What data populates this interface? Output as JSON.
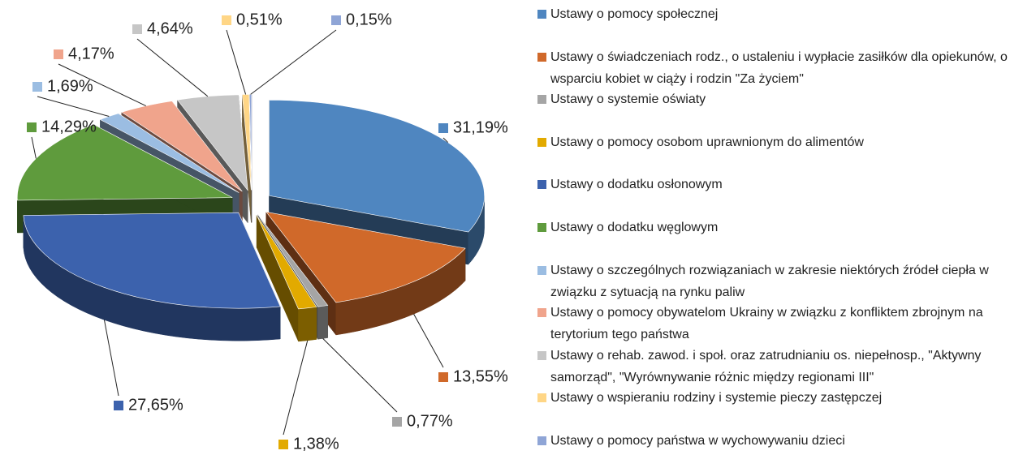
{
  "chart_data": {
    "type": "pie",
    "legend": "right",
    "categories": [
      "Ustawy o pomocy społecznej",
      "Ustawy o świadczeniach rodz., o ustaleniu i wypłacie zasiłków dla opiekunów, o wsparciu kobiet w ciąży i rodzin \"Za życiem\"",
      "Ustawy o systemie oświaty",
      "Ustawy o pomocy osobom uprawnionym do alimentów",
      "Ustawy o dodatku osłonowym",
      "Ustawy o dodatku węglowym",
      "Ustawy o szczególnych rozwiązaniach w zakresie niektórych źródeł ciepła w związku z sytuacją na rynku paliw",
      "Ustawy o pomocy obywatelom Ukrainy w związku z konfliktem zbrojnym na terytorium tego państwa",
      "Ustawy o rehab. zawod. i społ. oraz zatrudnianiu os. niepełnosp., \"Aktywny samorząd\", \"Wyrównywanie różnic między regionami III\"",
      "Ustawy o wspieraniu rodziny i systemie pieczy zastępczej",
      "Ustawy o pomocy państwa w wychowywaniu dzieci"
    ],
    "values": [
      31.19,
      13.55,
      0.77,
      1.38,
      27.65,
      14.29,
      1.69,
      4.17,
      4.64,
      0.51,
      0.15
    ],
    "value_labels": [
      "31,19%",
      "13,55%",
      "0,77%",
      "1,38%",
      "27,65%",
      "14,29%",
      "1,69%",
      "4,17%",
      "4,64%",
      "0,51%",
      "0,15%"
    ],
    "colors": [
      "#4f86c0",
      "#d0692a",
      "#a5a5a5",
      "#e2aa00",
      "#3c62ad",
      "#5f9b3d",
      "#9bbde2",
      "#f0a48c",
      "#c6c6c6",
      "#ffd686",
      "#8fa5d6"
    ]
  }
}
